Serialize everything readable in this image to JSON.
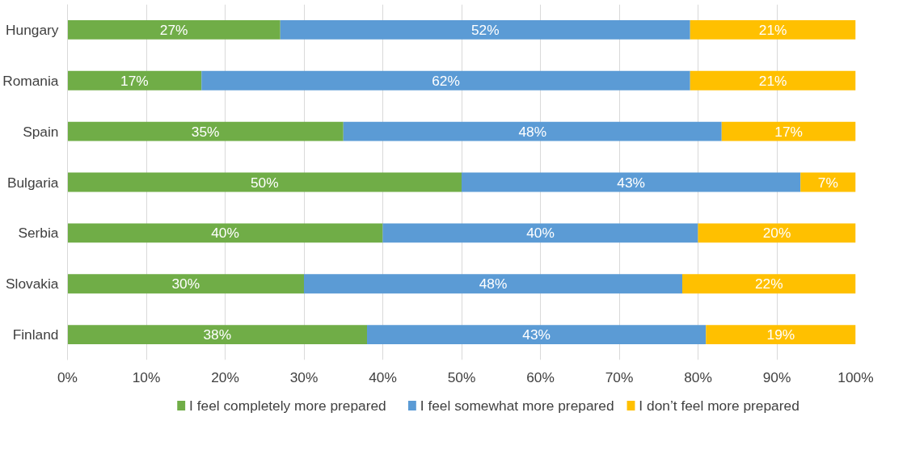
{
  "chart_data": {
    "type": "bar",
    "orientation": "horizontal",
    "stacked": true,
    "categories": [
      "Hungary",
      "Romania",
      "Spain",
      "Bulgaria",
      "Serbia",
      "Slovakia",
      "Finland"
    ],
    "series": [
      {
        "name": "I feel completely more prepared",
        "color": "#70ad47",
        "values": [
          27,
          17,
          35,
          50,
          40,
          30,
          38
        ],
        "value_labels": [
          "27%",
          "17%",
          "35%",
          "50%",
          "40%",
          "30%",
          "38%"
        ]
      },
      {
        "name": "I feel somewhat more prepared",
        "color": "#5b9bd5",
        "values": [
          52,
          62,
          48,
          43,
          40,
          48,
          43
        ],
        "value_labels": [
          "52%",
          "62%",
          "48%",
          "43%",
          "40%",
          "48%",
          "43%"
        ]
      },
      {
        "name": "I don’t feel more prepared",
        "color": "#ffc000",
        "values": [
          21,
          21,
          17,
          7,
          20,
          22,
          19
        ],
        "value_labels": [
          "21%",
          "21%",
          "17%",
          "7%",
          "20%",
          "22%",
          "19%"
        ]
      }
    ],
    "xlim": [
      0,
      100
    ],
    "xticks": [
      {
        "value": 0,
        "label": "0%"
      },
      {
        "value": 10,
        "label": "10%"
      },
      {
        "value": 20,
        "label": "20%"
      },
      {
        "value": 30,
        "label": "30%"
      },
      {
        "value": 40,
        "label": "40%"
      },
      {
        "value": 50,
        "label": "50%"
      },
      {
        "value": 60,
        "label": "60%"
      },
      {
        "value": 70,
        "label": "70%"
      },
      {
        "value": 80,
        "label": "80%"
      },
      {
        "value": 90,
        "label": "90%"
      },
      {
        "value": 100,
        "label": "100%"
      }
    ],
    "grid": "x",
    "legend": "bottom"
  }
}
